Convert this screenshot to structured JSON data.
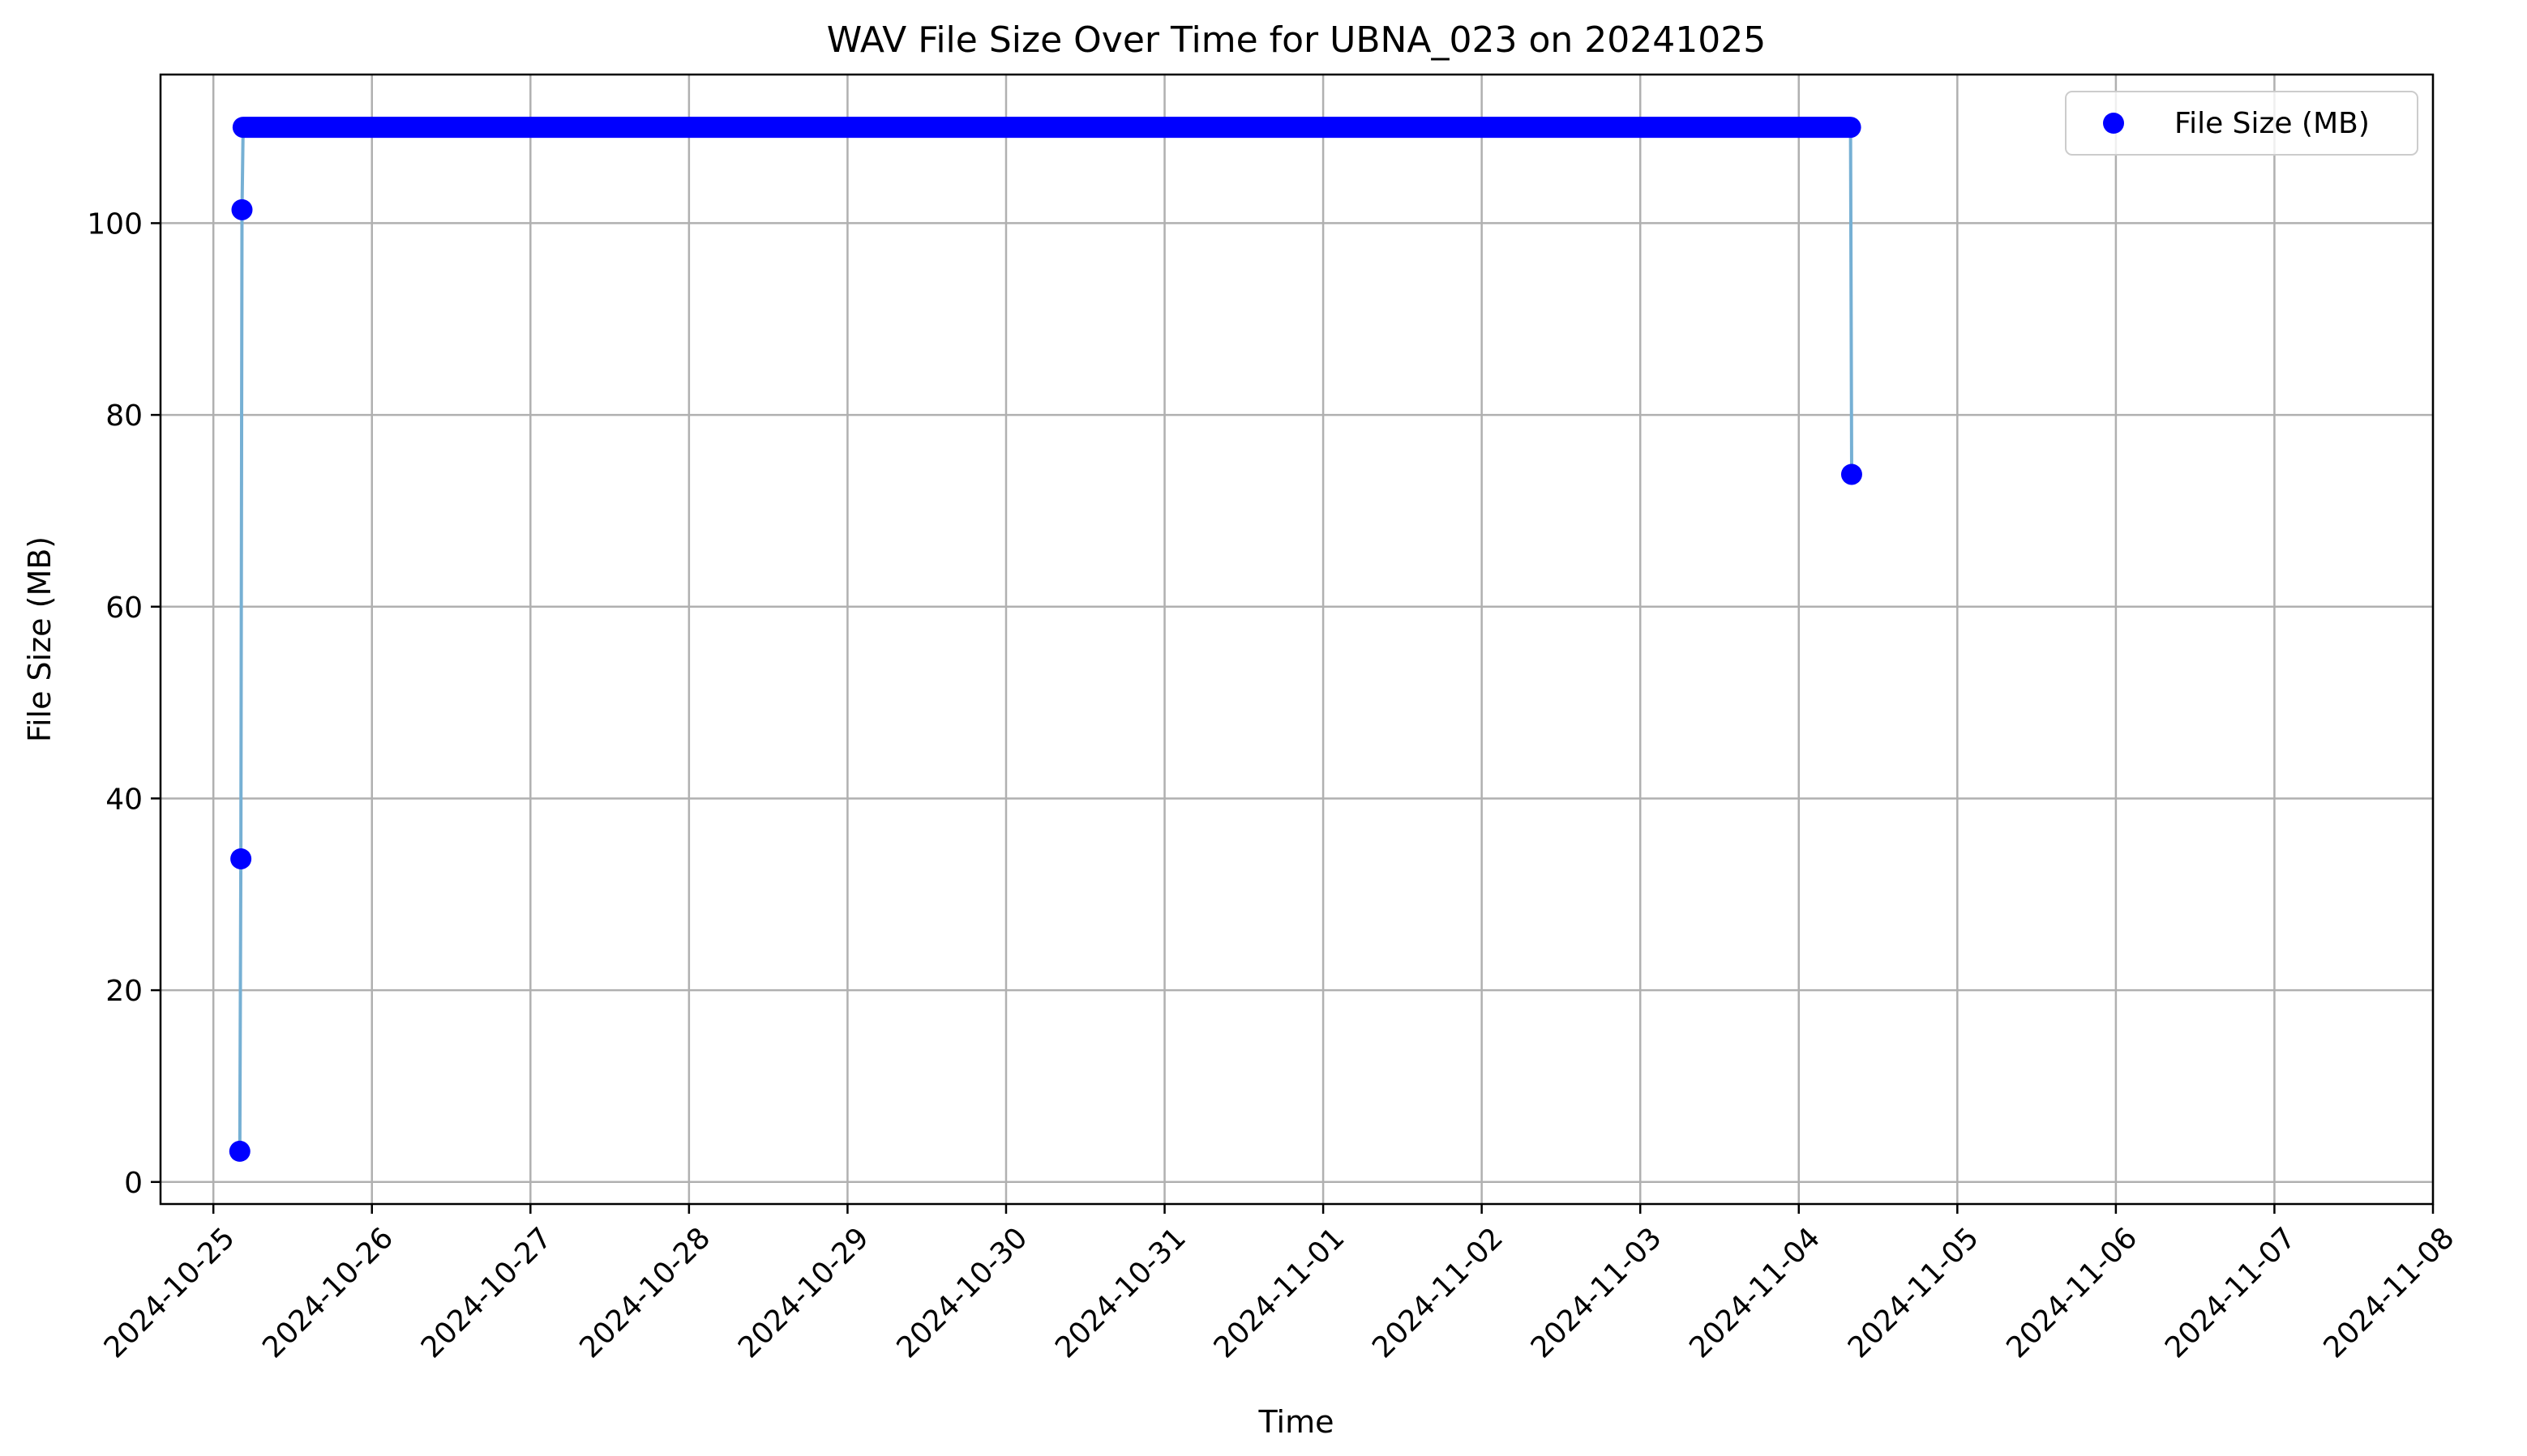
{
  "chart_data": {
    "type": "scatter",
    "title": "WAV File Size Over Time for UBNA_023 on 20241025",
    "xlabel": "Time",
    "ylabel": "File Size (MB)",
    "x_type": "date",
    "xlim": [
      "2024-10-24T16:00",
      "2024-11-08T00:00"
    ],
    "ylim": [
      -2.3,
      115.5
    ],
    "x_ticks": [
      "2024-10-25",
      "2024-10-26",
      "2024-10-27",
      "2024-10-28",
      "2024-10-29",
      "2024-10-30",
      "2024-10-31",
      "2024-11-01",
      "2024-11-02",
      "2024-11-03",
      "2024-11-04",
      "2024-11-05",
      "2024-11-06",
      "2024-11-07",
      "2024-11-08"
    ],
    "y_ticks": [
      0,
      20,
      40,
      60,
      80,
      100
    ],
    "grid": true,
    "legend": {
      "position": "top-right",
      "entries": [
        "File Size (MB)"
      ]
    },
    "colors": {
      "marker": "#0000ff",
      "line": "#76b0d4",
      "grid": "#b0b0b0"
    },
    "series": [
      {
        "name": "File Size (MB)",
        "x_start": "2024-10-25T04:00",
        "x_end": "2024-11-04T08:00",
        "x": [
          "2024-10-25T04:00",
          "2024-10-25T04:10",
          "2024-10-25T04:20",
          "2024-10-25T04:30",
          "2024-10-25T05:00",
          "2024-10-26T00:00",
          "2024-10-27T00:00",
          "2024-10-28T00:00",
          "2024-10-29T00:00",
          "2024-10-30T00:00",
          "2024-10-31T00:00",
          "2024-11-01T00:00",
          "2024-11-02T00:00",
          "2024-11-03T00:00",
          "2024-11-04T00:00",
          "2024-11-04T07:50",
          "2024-11-04T08:00"
        ],
        "y": [
          3.2,
          33.7,
          101.4,
          110.0,
          110.0,
          110.0,
          110.0,
          110.0,
          110.0,
          110.0,
          110.0,
          110.0,
          110.0,
          110.0,
          110.0,
          110.0,
          73.8
        ],
        "plateau_value": 110.0
      }
    ]
  }
}
